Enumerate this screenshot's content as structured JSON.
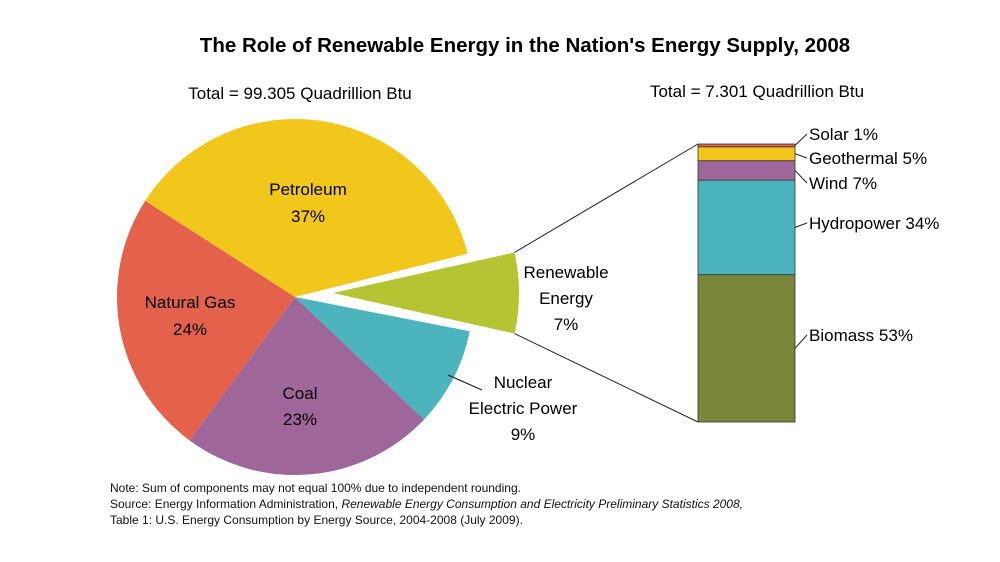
{
  "chart_data": [
    {
      "type": "pie",
      "title": "The Role of Renewable Energy in the Nation's Energy Supply, 2008",
      "total_label": "Total = 99.305 Quadrillion Btu",
      "slices": [
        {
          "name": "Petroleum",
          "value": 37,
          "pct_label": "37%",
          "color": "#F2C71C"
        },
        {
          "name": "Natural Gas",
          "value": 24,
          "pct_label": "24%",
          "color": "#E4614B"
        },
        {
          "name": "Coal",
          "value": 23,
          "pct_label": "23%",
          "color": "#9E6699"
        },
        {
          "name": "Nuclear Electric Power",
          "value": 9,
          "pct_label": "9%",
          "color": "#4CB4BD"
        },
        {
          "name": "Renewable Energy",
          "value": 7,
          "pct_label": "7%",
          "color": "#B5C433",
          "exploded": true
        }
      ],
      "labels": {
        "petroleum": [
          "Petroleum",
          "37%"
        ],
        "natural_gas": [
          "Natural Gas",
          "24%"
        ],
        "coal": [
          "Coal",
          "23%"
        ],
        "nuclear": [
          "Nuclear",
          "Electric Power",
          "9%"
        ],
        "renewable": [
          "Renewable",
          "Energy",
          "7%"
        ]
      }
    },
    {
      "type": "bar",
      "stacked": true,
      "total_label": "Total = 7.301 Quadrillion Btu",
      "segments": [
        {
          "name": "Biomass",
          "value": 53,
          "label": "Biomass 53%",
          "color": "#7A863A"
        },
        {
          "name": "Hydropower",
          "value": 34,
          "label": "Hydropower 34%",
          "color": "#4CB4BD"
        },
        {
          "name": "Wind",
          "value": 7,
          "label": "Wind 7%",
          "color": "#9E6699"
        },
        {
          "name": "Geothermal",
          "value": 5,
          "label": "Geothermal 5%",
          "color": "#F2C71C"
        },
        {
          "name": "Solar",
          "value": 1,
          "label": "Solar 1%",
          "color": "#E4614B"
        }
      ]
    }
  ],
  "notes": {
    "note": "Note: Sum of components may not equal 100% due to independent rounding.",
    "source_prefix": "Source: Energy Information Administration, ",
    "source_italic": "Renewable Energy Consumption and Electricity Preliminary Statistics 2008,",
    "source_line2": "Table 1: U.S. Energy Consumption by Energy Source, 2004-2008 (July 2009)."
  }
}
